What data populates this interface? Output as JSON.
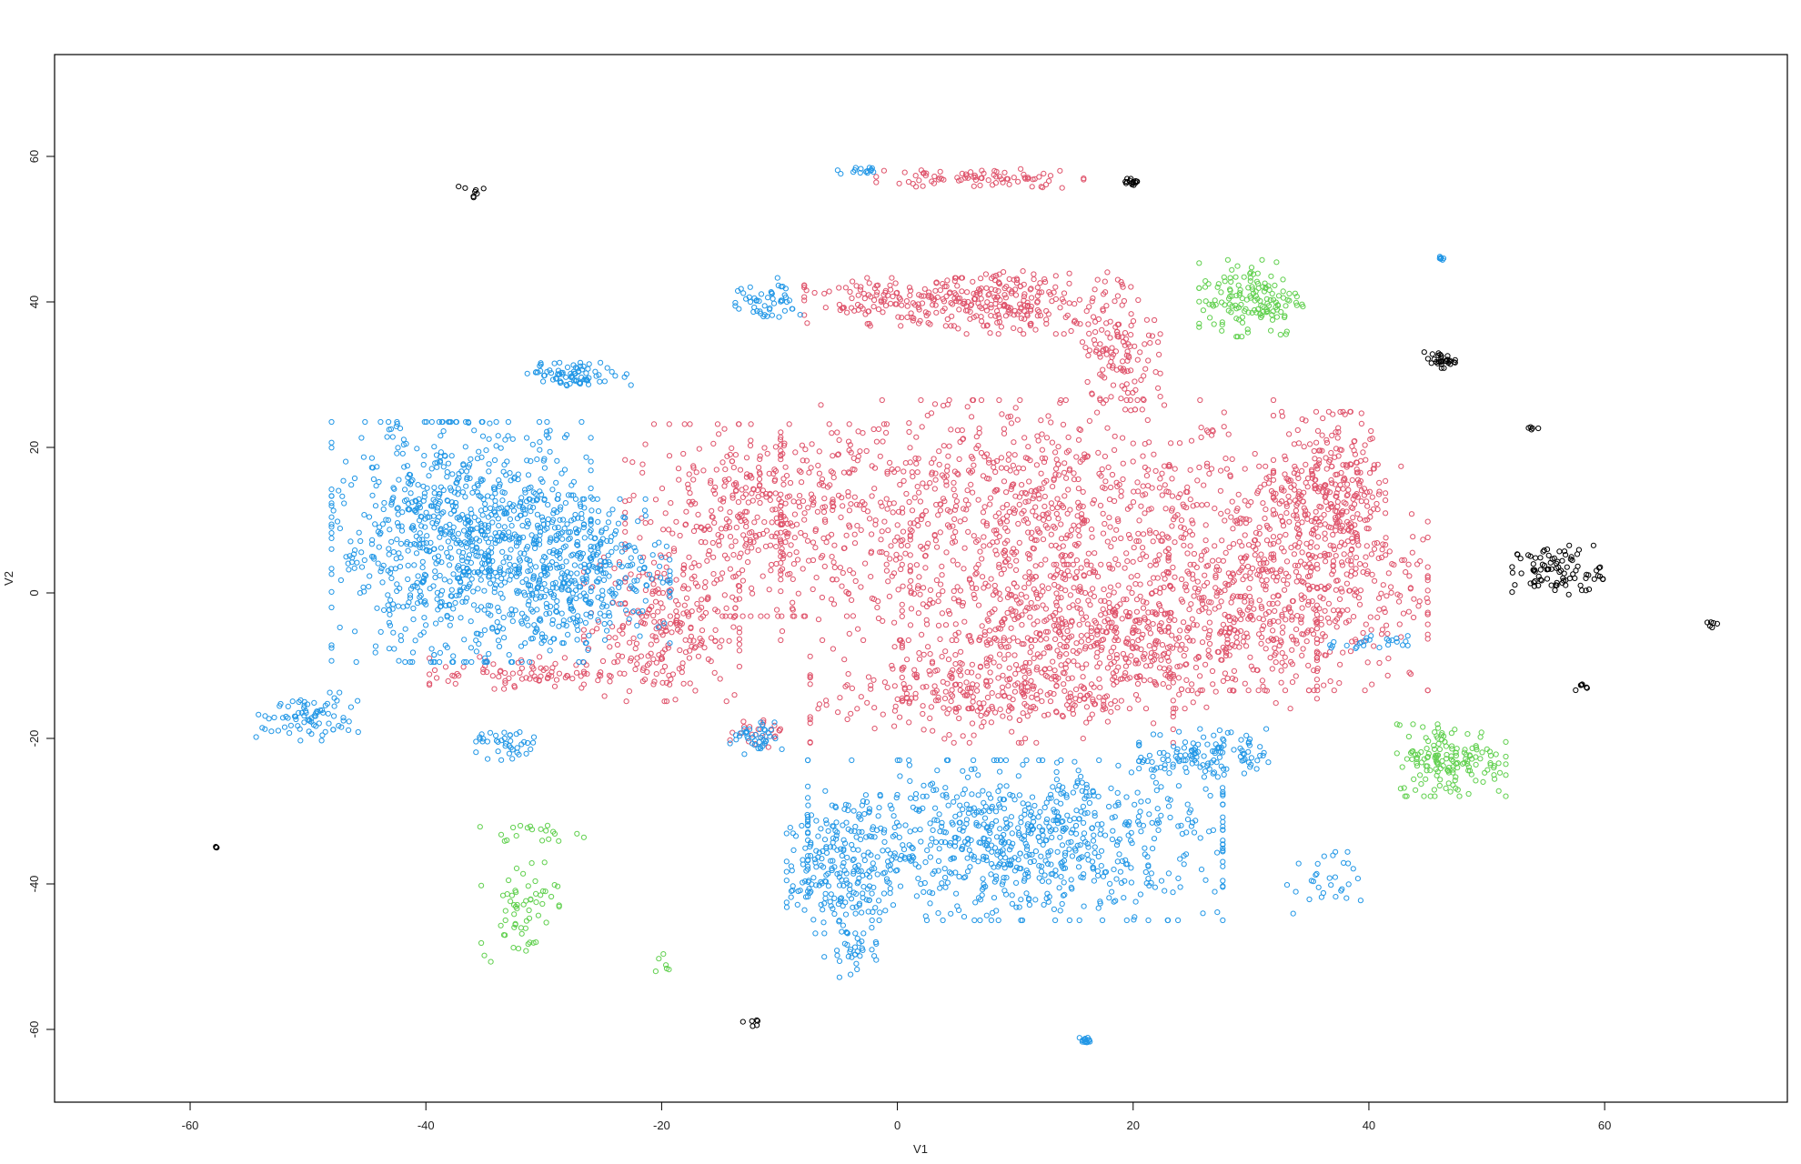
{
  "chart_data": {
    "type": "scatter",
    "xlabel": "V1",
    "ylabel": "V2",
    "xlim": [
      -71.5,
      75.5
    ],
    "ylim": [
      -70,
      74
    ],
    "x_ticks": [
      -60,
      -40,
      -20,
      0,
      20,
      40,
      60
    ],
    "y_ticks": [
      -60,
      -40,
      -20,
      0,
      20,
      40,
      60
    ],
    "x_tick_labels": [
      "-60",
      "-40",
      "-20",
      "0",
      "20",
      "40",
      "60"
    ],
    "y_tick_labels": [
      "-60",
      "-40",
      "-20",
      "0",
      "20",
      "40",
      "60"
    ],
    "grid": false,
    "marker": "open-circle",
    "colors": {
      "red": "#DF536B",
      "blue": "#2297E6",
      "green": "#61D04F",
      "black": "#000000"
    },
    "series": [
      {
        "color": "red",
        "blobs": [
          {
            "cx": 11,
            "cy": 10,
            "rx": 19,
            "ry": 15,
            "n": 900
          },
          {
            "cx": -11,
            "cy": 10,
            "rx": 11,
            "ry": 12,
            "n": 450
          },
          {
            "cx": -20,
            "cy": -5,
            "rx": 6,
            "ry": 9,
            "n": 250
          },
          {
            "cx": -32,
            "cy": -11,
            "rx": 7,
            "ry": 2,
            "n": 80
          },
          {
            "cx": 34,
            "cy": 2,
            "rx": 10,
            "ry": 14,
            "n": 550
          },
          {
            "cx": 37,
            "cy": 15,
            "rx": 4,
            "ry": 9,
            "n": 250
          },
          {
            "cx": 18,
            "cy": -6,
            "rx": 16,
            "ry": 9,
            "n": 650
          },
          {
            "cx": 8,
            "cy": -14,
            "rx": 14,
            "ry": 6,
            "n": 300
          },
          {
            "cx": 2,
            "cy": 40,
            "rx": 9,
            "ry": 3,
            "n": 200
          },
          {
            "cx": 11,
            "cy": 40,
            "rx": 7,
            "ry": 4,
            "n": 150
          },
          {
            "cx": 19,
            "cy": 34,
            "rx": 3,
            "ry": 8,
            "n": 120
          },
          {
            "cx": 7,
            "cy": 57,
            "rx": 8,
            "ry": 1.2,
            "n": 80
          },
          {
            "cx": -12,
            "cy": -19,
            "rx": 2,
            "ry": 2,
            "n": 25
          }
        ]
      },
      {
        "color": "blue",
        "blobs": [
          {
            "cx": -37,
            "cy": 7,
            "rx": 10,
            "ry": 15,
            "n": 900
          },
          {
            "cx": -27,
            "cy": 3,
            "rx": 7,
            "ry": 9,
            "n": 400
          },
          {
            "cx": 10,
            "cy": -34,
            "rx": 16,
            "ry": 10,
            "n": 800
          },
          {
            "cx": -5,
            "cy": -38,
            "rx": 4,
            "ry": 8,
            "n": 200
          },
          {
            "cx": 26,
            "cy": -22,
            "rx": 5,
            "ry": 3,
            "n": 120
          },
          {
            "cx": -27,
            "cy": 30,
            "rx": 4,
            "ry": 1.5,
            "n": 80
          },
          {
            "cx": -50,
            "cy": -17,
            "rx": 4,
            "ry": 3,
            "n": 80
          },
          {
            "cx": -33,
            "cy": -21,
            "rx": 2.5,
            "ry": 1.8,
            "n": 40
          },
          {
            "cx": -12,
            "cy": -20,
            "rx": 2,
            "ry": 2,
            "n": 40
          },
          {
            "cx": -11,
            "cy": 40,
            "rx": 2.5,
            "ry": 3,
            "n": 50
          },
          {
            "cx": -4,
            "cy": -50,
            "rx": 2,
            "ry": 3,
            "n": 30
          },
          {
            "cx": 36,
            "cy": -40,
            "rx": 3,
            "ry": 4,
            "n": 30
          },
          {
            "cx": 40,
            "cy": -7,
            "rx": 3,
            "ry": 1,
            "n": 25
          },
          {
            "cx": 16,
            "cy": -61.5,
            "rx": 0.5,
            "ry": 0.4,
            "n": 15
          },
          {
            "cx": 46,
            "cy": 46,
            "rx": 0.3,
            "ry": 0.3,
            "n": 8
          },
          {
            "cx": -3,
            "cy": 58,
            "rx": 2,
            "ry": 0.5,
            "n": 15
          }
        ]
      },
      {
        "color": "green",
        "blobs": [
          {
            "cx": 30,
            "cy": 40.5,
            "rx": 4,
            "ry": 4.8,
            "n": 150
          },
          {
            "cx": 47,
            "cy": -23,
            "rx": 4.2,
            "ry": 4.5,
            "n": 160
          },
          {
            "cx": -32,
            "cy": -43,
            "rx": 3,
            "ry": 7,
            "n": 60
          },
          {
            "cx": -31,
            "cy": -33,
            "rx": 4,
            "ry": 1,
            "n": 20
          },
          {
            "cx": -20,
            "cy": -51,
            "rx": 1,
            "ry": 1.5,
            "n": 6
          }
        ]
      },
      {
        "color": "black",
        "blobs": [
          {
            "cx": 56,
            "cy": 3,
            "rx": 3.5,
            "ry": 3.2,
            "n": 90
          },
          {
            "cx": 46,
            "cy": 32,
            "rx": 1.2,
            "ry": 1,
            "n": 30
          },
          {
            "cx": 20,
            "cy": 56.5,
            "rx": 0.6,
            "ry": 0.4,
            "n": 15
          },
          {
            "cx": 54,
            "cy": 22.5,
            "rx": 0.5,
            "ry": 0.3,
            "n": 5
          },
          {
            "cx": 58,
            "cy": -13,
            "rx": 0.6,
            "ry": 0.5,
            "n": 6
          },
          {
            "cx": 69,
            "cy": -4,
            "rx": 0.5,
            "ry": 1,
            "n": 6
          },
          {
            "cx": -36,
            "cy": 55,
            "rx": 1.5,
            "ry": 1.2,
            "n": 8
          },
          {
            "cx": -58,
            "cy": -35,
            "rx": 0.4,
            "ry": 0.4,
            "n": 3
          },
          {
            "cx": -12,
            "cy": -59,
            "rx": 1,
            "ry": 0.8,
            "n": 6
          }
        ]
      }
    ]
  }
}
